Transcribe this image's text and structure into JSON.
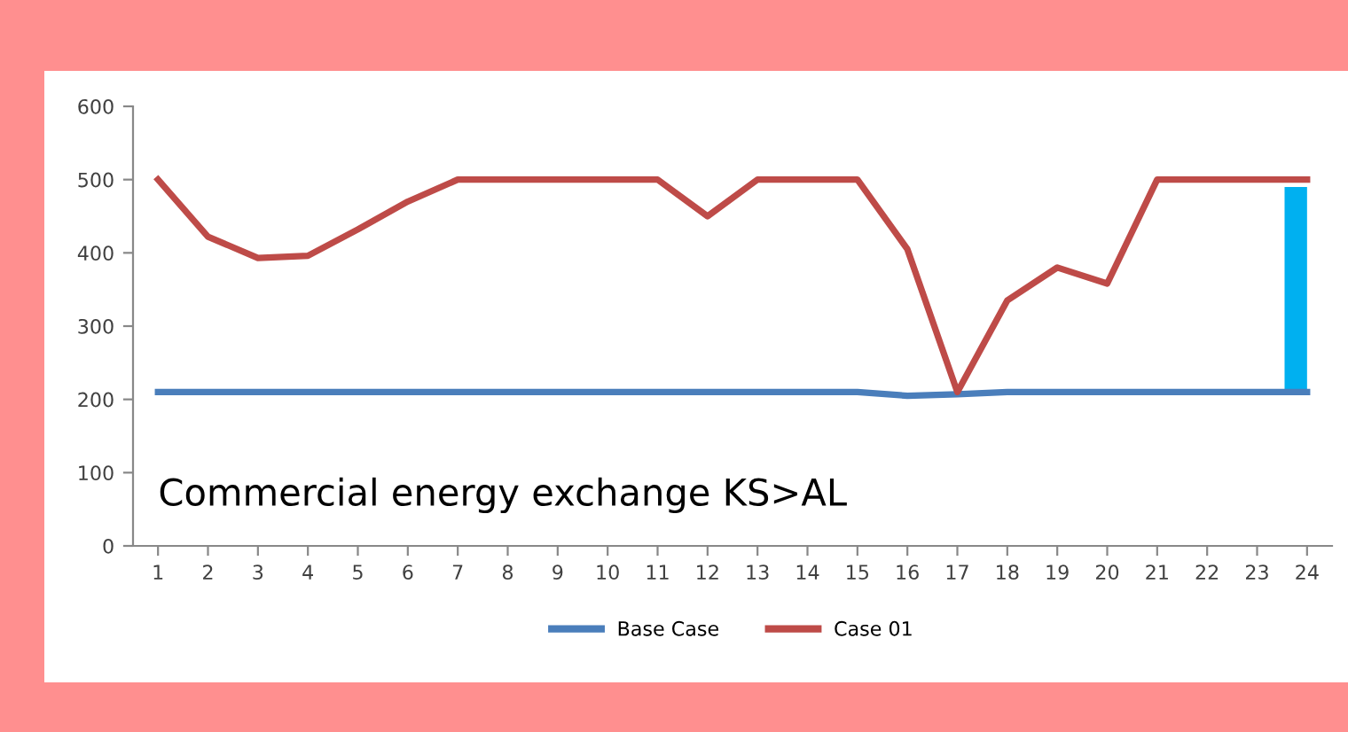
{
  "chart_data": {
    "type": "line",
    "categories": [
      "1",
      "2",
      "3",
      "4",
      "5",
      "6",
      "7",
      "8",
      "9",
      "10",
      "11",
      "12",
      "13",
      "14",
      "15",
      "16",
      "17",
      "18",
      "19",
      "20",
      "21",
      "22",
      "23",
      "24"
    ],
    "series": [
      {
        "name": "Base Case",
        "color": "#4a7ebb",
        "values": [
          210,
          210,
          210,
          210,
          210,
          210,
          210,
          210,
          210,
          210,
          210,
          210,
          210,
          210,
          210,
          205,
          207,
          210,
          210,
          210,
          210,
          210,
          210,
          210
        ]
      },
      {
        "name": "Case 01",
        "color": "#be4b48",
        "values": [
          500,
          422,
          393,
          396,
          432,
          470,
          500,
          500,
          500,
          500,
          500,
          450,
          500,
          500,
          500,
          405,
          210,
          335,
          380,
          358,
          500,
          500,
          500,
          500
        ]
      },
      {
        "type": "bar",
        "color": "#00b0f0",
        "base": [
          null,
          null,
          null,
          null,
          null,
          null,
          null,
          null,
          null,
          null,
          null,
          null,
          null,
          null,
          null,
          null,
          null,
          null,
          null,
          null,
          null,
          null,
          null,
          210
        ],
        "values": [
          null,
          null,
          null,
          null,
          null,
          null,
          null,
          null,
          null,
          null,
          null,
          null,
          null,
          null,
          null,
          null,
          null,
          null,
          null,
          null,
          null,
          null,
          null,
          280
        ]
      }
    ],
    "ylim": [
      0,
      600
    ],
    "yticks": [
      0,
      100,
      200,
      300,
      400,
      500,
      600
    ],
    "annotations": [
      "Commercial energy exchange KS>AL"
    ],
    "legend": "bottom",
    "grid": false,
    "marker": "none",
    "line_style": "solid"
  }
}
